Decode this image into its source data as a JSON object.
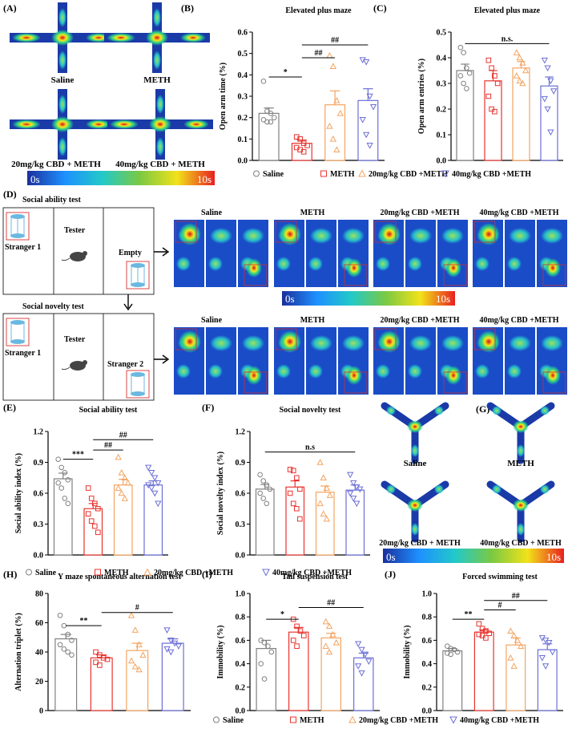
{
  "colors": {
    "saline": "#808080",
    "meth": "#e8342f",
    "cbd20": "#f4a460",
    "cbd40": "#6b6fd6",
    "axis": "#000000"
  },
  "groups": [
    "Saline",
    "METH",
    "20mg/kg CBD +METH",
    "40mg/kg CBD +METH"
  ],
  "heat_scale": {
    "min_label": "0s",
    "max_label": "10s"
  },
  "panel_A": {
    "letter": "(A)",
    "labels": [
      "Saline",
      "METH",
      "20mg/kg CBD + METH",
      "40mg/kg CBD + METH"
    ]
  },
  "panel_D": {
    "letter": "(D)",
    "ability_title": "Social ability test",
    "novelty_title": "Social novelty test",
    "stranger1": "Stranger 1",
    "tester": "Tester",
    "empty": "Empty",
    "stranger2": "Stranger 2",
    "group_labels": [
      "Saline",
      "METH",
      "20mg/kg CBD +METH",
      "40mg/kg CBD +METH"
    ]
  },
  "panel_G": {
    "letter": "(G)",
    "labels": [
      "Saline",
      "METH",
      "20mg/kg CBD + METH",
      "40mg/kg CBD + METH"
    ]
  },
  "legends": {
    "bc": [
      "Saline",
      "METH",
      "20mg/kg CBD +METH",
      "40mg/kg CBD +METH"
    ],
    "e": [
      "Saline",
      "METH",
      "20mg/kg CBD +METH"
    ],
    "f": [
      "40mg/kg CBD +METH"
    ],
    "hij": [
      "Saline",
      "METH",
      "20mg/kg CBD +METH",
      "40mg/kg CBD +METH"
    ]
  },
  "chart_data": [
    {
      "id": "B",
      "letter": "(B)",
      "type": "bar",
      "title": "Elevated plus maze",
      "ylabel": "Open arm time (%)",
      "ylim": [
        0,
        0.6
      ],
      "yticks": [
        "0.0",
        "0.1",
        "0.2",
        "0.3",
        "0.4",
        "0.5",
        "0.6"
      ],
      "categories": [
        "Saline",
        "METH",
        "20mg/kg CBD +METH",
        "40mg/kg CBD +METH"
      ],
      "values": [
        0.22,
        0.08,
        0.26,
        0.28
      ],
      "errors": [
        0.025,
        0.015,
        0.065,
        0.055
      ],
      "points": [
        [
          0.37,
          0.23,
          0.22,
          0.2,
          0.19,
          0.18,
          0.18
        ],
        [
          0.11,
          0.1,
          0.08,
          0.07,
          0.06,
          0.05,
          0.04
        ],
        [
          0.49,
          0.44,
          0.28,
          0.22,
          0.16,
          0.1,
          0.05
        ],
        [
          0.47,
          0.46,
          0.3,
          0.25,
          0.19,
          0.12,
          0.07
        ]
      ],
      "sig": [
        {
          "text": "*",
          "from": 0,
          "to": 1,
          "y": 0.39
        },
        {
          "text": "##",
          "from": 1,
          "to": 2,
          "y": 0.48
        },
        {
          "text": "##",
          "from": 1,
          "to": 3,
          "y": 0.54
        }
      ]
    },
    {
      "id": "C",
      "letter": "(C)",
      "type": "bar",
      "title": "Elevated plus maze",
      "ylabel": "Open arm entries (%)",
      "ylim": [
        0,
        0.5
      ],
      "yticks": [
        "0.0",
        "0.1",
        "0.2",
        "0.3",
        "0.4",
        "0.5"
      ],
      "categories": [
        "Saline",
        "METH",
        "20mg/kg CBD +METH",
        "40mg/kg CBD +METH"
      ],
      "values": [
        0.35,
        0.31,
        0.36,
        0.29
      ],
      "errors": [
        0.025,
        0.04,
        0.025,
        0.035
      ],
      "points": [
        [
          0.44,
          0.42,
          0.36,
          0.34,
          0.33,
          0.3,
          0.28
        ],
        [
          0.39,
          0.36,
          0.33,
          0.3,
          0.25,
          0.2,
          0.19
        ],
        [
          0.42,
          0.4,
          0.38,
          0.35,
          0.33,
          0.31,
          0.3
        ],
        [
          0.39,
          0.36,
          0.31,
          0.27,
          0.24,
          0.2,
          0.11
        ]
      ],
      "sig": [
        {
          "text": "n.s.",
          "from": 0,
          "to": 3,
          "y": 0.455
        }
      ]
    },
    {
      "id": "E",
      "letter": "(E)",
      "type": "bar",
      "title": "Social ability test",
      "ylabel": "Social ability index (%)",
      "ylim": [
        0,
        1.2
      ],
      "yticks": [
        "0.0",
        "0.3",
        "0.6",
        "0.9",
        "1.2"
      ],
      "categories": [
        "Saline",
        "METH",
        "20mg/kg CBD +METH",
        "40mg/kg CBD +METH"
      ],
      "values": [
        0.74,
        0.45,
        0.68,
        0.68
      ],
      "errors": [
        0.055,
        0.05,
        0.055,
        0.04
      ],
      "points": [
        [
          0.93,
          0.85,
          0.8,
          0.73,
          0.7,
          0.65,
          0.55,
          0.5
        ],
        [
          0.65,
          0.55,
          0.5,
          0.45,
          0.4,
          0.33,
          0.28,
          0.22
        ],
        [
          0.95,
          0.8,
          0.75,
          0.7,
          0.65,
          0.6,
          0.55
        ],
        [
          0.85,
          0.8,
          0.75,
          0.7,
          0.68,
          0.65,
          0.6,
          0.5
        ]
      ],
      "sig": [
        {
          "text": "***",
          "from": 0,
          "to": 1,
          "y": 0.93
        },
        {
          "text": "##",
          "from": 1,
          "to": 2,
          "y": 1.02
        },
        {
          "text": "##",
          "from": 1,
          "to": 3,
          "y": 1.12
        }
      ]
    },
    {
      "id": "F",
      "letter": "(F)",
      "type": "bar",
      "title": "Social novelty test",
      "ylabel": "Social novelty index (%)",
      "ylim": [
        0,
        1.2
      ],
      "yticks": [
        "0.0",
        "0.3",
        "0.6",
        "0.9",
        "1.2"
      ],
      "categories": [
        "Saline",
        "METH",
        "20mg/kg CBD +METH",
        "40mg/kg CBD +METH"
      ],
      "values": [
        0.64,
        0.66,
        0.61,
        0.63
      ],
      "errors": [
        0.045,
        0.06,
        0.06,
        0.05
      ],
      "points": [
        [
          0.78,
          0.72,
          0.68,
          0.64,
          0.6,
          0.55,
          0.5
        ],
        [
          0.83,
          0.82,
          0.75,
          0.64,
          0.6,
          0.5,
          0.45,
          0.35
        ],
        [
          0.9,
          0.75,
          0.65,
          0.58,
          0.5,
          0.4,
          0.35
        ],
        [
          0.78,
          0.7,
          0.66,
          0.64,
          0.6,
          0.55,
          0.5
        ]
      ],
      "sig": [
        {
          "text": "n.s",
          "from": 0,
          "to": 3,
          "y": 1.0
        }
      ]
    },
    {
      "id": "H",
      "letter": "(H)",
      "type": "bar",
      "title": "Y maze spontaneous alternation test",
      "ylabel": "Alternation triplet (%)",
      "ylim": [
        0,
        80
      ],
      "yticks": [
        "0",
        "20",
        "40",
        "60",
        "80"
      ],
      "categories": [
        "Saline",
        "METH",
        "20mg/kg CBD +METH",
        "40mg/kg CBD +METH"
      ],
      "values": [
        49,
        36,
        41,
        46
      ],
      "errors": [
        3,
        2,
        5,
        3
      ],
      "points": [
        [
          65,
          58,
          52,
          48,
          45,
          42,
          40,
          38
        ],
        [
          40,
          38,
          36,
          35,
          33,
          31
        ],
        [
          65,
          55,
          45,
          38,
          34,
          30,
          28
        ],
        [
          55,
          48,
          46,
          44,
          42,
          40
        ]
      ],
      "sig": [
        {
          "text": "**",
          "from": 0,
          "to": 1,
          "y": 58
        },
        {
          "text": "#",
          "from": 1,
          "to": 3,
          "y": 67
        }
      ]
    },
    {
      "id": "I",
      "letter": "(I)",
      "type": "bar",
      "title": "Tail suspension test",
      "ylabel": "Immobility (%)",
      "ylim": [
        0,
        1.0
      ],
      "yticks": [
        "0.0",
        "0.2",
        "0.4",
        "0.6",
        "0.8",
        "1.0"
      ],
      "categories": [
        "Saline",
        "METH",
        "20mg/kg CBD +METH",
        "40mg/kg CBD +METH"
      ],
      "values": [
        0.53,
        0.67,
        0.62,
        0.45
      ],
      "errors": [
        0.07,
        0.04,
        0.04,
        0.04
      ],
      "points": [
        [
          0.6,
          0.58,
          0.55,
          0.5,
          0.4,
          0.27
        ],
        [
          0.78,
          0.72,
          0.68,
          0.64,
          0.6,
          0.55
        ],
        [
          0.76,
          0.72,
          0.65,
          0.58,
          0.55,
          0.5
        ],
        [
          0.57,
          0.52,
          0.48,
          0.42,
          0.38,
          0.32
        ]
      ],
      "sig": [
        {
          "text": "*",
          "from": 0,
          "to": 1,
          "y": 0.78
        },
        {
          "text": "##",
          "from": 1,
          "to": 3,
          "y": 0.88
        }
      ]
    },
    {
      "id": "J",
      "letter": "(J)",
      "type": "bar",
      "title": "Forced swimming test",
      "ylabel": "Immobility (%)",
      "ylim": [
        0,
        1.0
      ],
      "yticks": [
        "0.0",
        "0.2",
        "0.4",
        "0.6",
        "0.8",
        "1.0"
      ],
      "categories": [
        "Saline",
        "METH",
        "20mg/kg CBD +METH",
        "40mg/kg CBD +METH"
      ],
      "values": [
        0.51,
        0.67,
        0.56,
        0.52
      ],
      "errors": [
        0.02,
        0.02,
        0.06,
        0.05
      ],
      "points": [
        [
          0.55,
          0.53,
          0.52,
          0.5,
          0.49,
          0.48
        ],
        [
          0.74,
          0.7,
          0.68,
          0.66,
          0.65,
          0.64,
          0.62
        ],
        [
          0.68,
          0.64,
          0.6,
          0.55,
          0.45,
          0.38
        ],
        [
          0.62,
          0.6,
          0.58,
          0.5,
          0.45,
          0.38
        ]
      ],
      "sig": [
        {
          "text": "**",
          "from": 0,
          "to": 1,
          "y": 0.78
        },
        {
          "text": "#",
          "from": 1,
          "to": 2,
          "y": 0.86
        },
        {
          "text": "##",
          "from": 1,
          "to": 3,
          "y": 0.94
        }
      ]
    }
  ]
}
